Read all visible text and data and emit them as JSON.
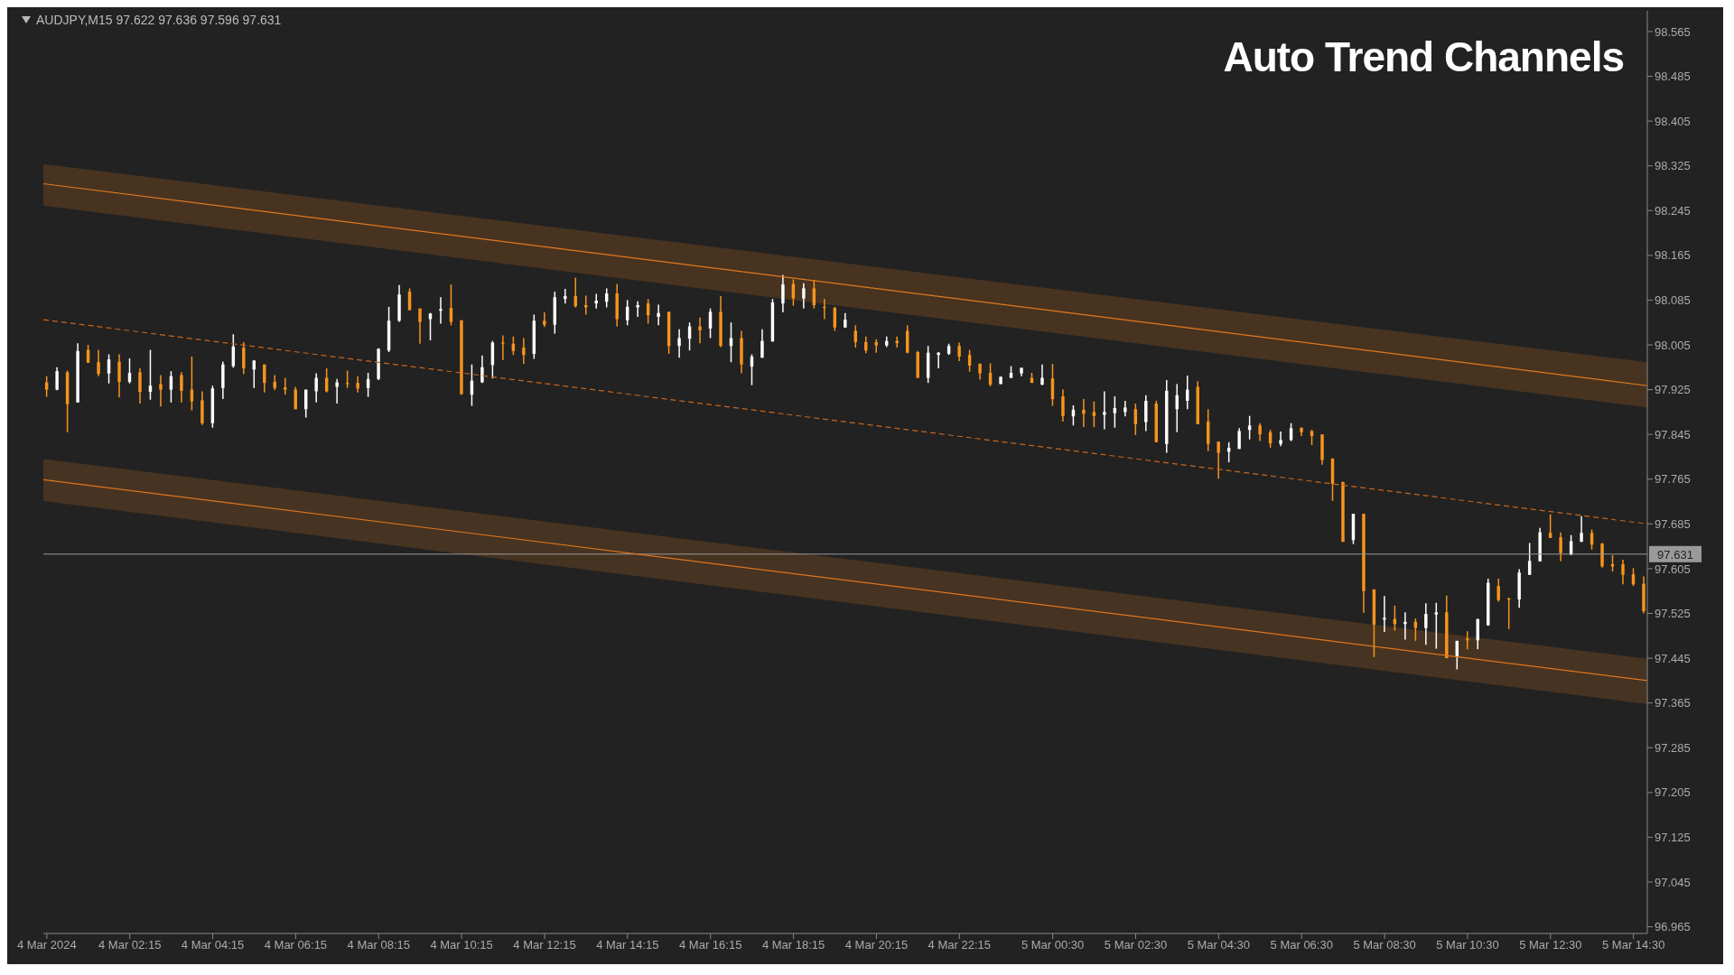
{
  "chart_data": {
    "type": "candlestick",
    "title": "Auto Trend Channels",
    "subtitle": "AUDJPY,M15  97.622 97.636 97.596 97.631",
    "x": [
      "2024-03-04T00:15",
      "2024-03-04T00:30",
      "2024-03-04T00:45",
      "2024-03-04T01:00",
      "2024-03-04T01:15",
      "2024-03-04T01:30",
      "2024-03-04T01:45",
      "2024-03-04T02:00",
      "2024-03-04T02:15",
      "2024-03-04T02:30",
      "2024-03-04T02:45",
      "2024-03-04T03:00",
      "2024-03-04T03:15",
      "2024-03-04T03:30",
      "2024-03-04T03:45",
      "2024-03-04T04:00",
      "2024-03-04T04:15",
      "2024-03-04T04:30",
      "2024-03-04T04:45",
      "2024-03-04T05:00",
      "2024-03-04T05:15",
      "2024-03-04T05:30",
      "2024-03-04T05:45",
      "2024-03-04T06:00",
      "2024-03-04T06:15",
      "2024-03-04T06:30",
      "2024-03-04T06:45",
      "2024-03-04T07:00",
      "2024-03-04T07:15",
      "2024-03-04T07:30",
      "2024-03-04T07:45",
      "2024-03-04T08:00",
      "2024-03-04T08:15",
      "2024-03-04T08:30",
      "2024-03-04T08:45",
      "2024-03-04T09:00",
      "2024-03-04T09:15",
      "2024-03-04T09:30",
      "2024-03-04T09:45",
      "2024-03-04T10:00",
      "2024-03-04T10:15",
      "2024-03-04T10:30",
      "2024-03-04T10:45",
      "2024-03-04T11:00",
      "2024-03-04T11:15",
      "2024-03-04T11:30",
      "2024-03-04T11:45",
      "2024-03-04T12:00",
      "2024-03-04T12:15",
      "2024-03-04T12:30",
      "2024-03-04T12:45",
      "2024-03-04T13:00",
      "2024-03-04T13:15",
      "2024-03-04T13:30",
      "2024-03-04T13:45",
      "2024-03-04T14:00",
      "2024-03-04T14:15",
      "2024-03-04T14:30",
      "2024-03-04T14:45",
      "2024-03-04T15:00",
      "2024-03-04T15:15",
      "2024-03-04T15:30",
      "2024-03-04T15:45",
      "2024-03-04T16:00",
      "2024-03-04T16:15",
      "2024-03-04T16:30",
      "2024-03-04T16:45",
      "2024-03-04T17:00",
      "2024-03-04T17:15",
      "2024-03-04T17:30",
      "2024-03-04T17:45",
      "2024-03-04T18:00",
      "2024-03-04T18:15",
      "2024-03-04T18:30",
      "2024-03-04T18:45",
      "2024-03-04T19:00",
      "2024-03-04T19:15",
      "2024-03-04T19:30",
      "2024-03-04T19:45",
      "2024-03-04T20:00",
      "2024-03-04T20:15",
      "2024-03-04T20:30",
      "2024-03-04T20:45",
      "2024-03-04T21:00",
      "2024-03-04T21:15",
      "2024-03-04T21:30",
      "2024-03-04T21:45",
      "2024-03-04T22:00",
      "2024-03-04T22:15",
      "2024-03-04T22:30",
      "2024-03-04T22:45",
      "2024-03-04T23:00",
      "2024-03-04T23:15",
      "2024-03-04T23:30",
      "2024-03-04T23:45",
      "2024-03-05T00:00",
      "2024-03-05T00:15",
      "2024-03-05T00:30",
      "2024-03-05T00:45",
      "2024-03-05T01:00",
      "2024-03-05T01:15",
      "2024-03-05T01:30",
      "2024-03-05T01:45",
      "2024-03-05T02:00",
      "2024-03-05T02:15",
      "2024-03-05T02:30",
      "2024-03-05T02:45",
      "2024-03-05T03:00",
      "2024-03-05T03:15",
      "2024-03-05T03:30",
      "2024-03-05T03:45",
      "2024-03-05T04:00",
      "2024-03-05T04:15",
      "2024-03-05T04:30",
      "2024-03-05T04:45",
      "2024-03-05T05:00",
      "2024-03-05T05:15",
      "2024-03-05T05:30",
      "2024-03-05T05:45",
      "2024-03-05T06:00",
      "2024-03-05T06:15",
      "2024-03-05T06:30",
      "2024-03-05T06:45",
      "2024-03-05T07:00",
      "2024-03-05T07:15",
      "2024-03-05T07:30",
      "2024-03-05T07:45",
      "2024-03-05T08:00",
      "2024-03-05T08:15",
      "2024-03-05T08:30",
      "2024-03-05T08:45",
      "2024-03-05T09:00",
      "2024-03-05T09:15",
      "2024-03-05T09:30",
      "2024-03-05T09:45",
      "2024-03-05T10:00",
      "2024-03-05T10:15",
      "2024-03-05T10:30",
      "2024-03-05T10:45",
      "2024-03-05T11:00",
      "2024-03-05T11:15",
      "2024-03-05T11:30",
      "2024-03-05T11:45",
      "2024-03-05T12:00",
      "2024-03-05T12:15",
      "2024-03-05T12:30",
      "2024-03-05T12:45",
      "2024-03-05T13:00",
      "2024-03-05T13:15",
      "2024-03-05T13:30",
      "2024-03-05T13:45",
      "2024-03-05T14:00",
      "2024-03-05T14:15",
      "2024-03-05T14:30",
      "2024-03-05T14:45"
    ],
    "ohlc": [
      [
        97.938,
        97.949,
        97.912,
        97.925
      ],
      [
        97.925,
        97.965,
        97.924,
        97.958
      ],
      [
        97.956,
        97.959,
        97.849,
        97.899
      ],
      [
        97.902,
        98.008,
        97.902,
        97.994
      ],
      [
        97.996,
        98.005,
        97.973,
        97.973
      ],
      [
        97.974,
        97.996,
        97.949,
        97.953
      ],
      [
        97.954,
        97.988,
        97.936,
        97.979
      ],
      [
        97.975,
        97.988,
        97.911,
        97.939
      ],
      [
        97.939,
        97.981,
        97.936,
        97.955
      ],
      [
        97.956,
        97.963,
        97.9,
        97.921
      ],
      [
        97.921,
        97.996,
        97.907,
        97.932
      ],
      [
        97.935,
        97.951,
        97.895,
        97.925
      ],
      [
        97.925,
        97.958,
        97.902,
        97.949
      ],
      [
        97.951,
        97.956,
        97.902,
        97.923
      ],
      [
        97.925,
        97.984,
        97.888,
        97.904
      ],
      [
        97.906,
        97.922,
        97.862,
        97.865
      ],
      [
        97.865,
        97.932,
        97.857,
        97.927
      ],
      [
        97.928,
        97.975,
        97.908,
        97.97
      ],
      [
        97.967,
        98.024,
        97.964,
        98.002
      ],
      [
        98.0,
        98.01,
        97.953,
        97.963
      ],
      [
        97.961,
        97.977,
        97.928,
        97.977
      ],
      [
        97.97,
        97.97,
        97.92,
        97.937
      ],
      [
        97.939,
        97.951,
        97.924,
        97.928
      ],
      [
        97.929,
        97.946,
        97.916,
        97.925
      ],
      [
        97.925,
        97.93,
        97.89,
        97.89
      ],
      [
        97.89,
        97.925,
        97.875,
        97.925
      ],
      [
        97.922,
        97.954,
        97.902,
        97.946
      ],
      [
        97.946,
        97.963,
        97.92,
        97.922
      ],
      [
        97.93,
        97.944,
        97.9,
        97.938
      ],
      [
        97.937,
        97.959,
        97.928,
        97.935
      ],
      [
        97.937,
        97.949,
        97.92,
        97.927
      ],
      [
        97.928,
        97.955,
        97.912,
        97.944
      ],
      [
        97.944,
        97.999,
        97.942,
        97.998
      ],
      [
        97.995,
        98.073,
        97.992,
        98.048
      ],
      [
        98.048,
        98.112,
        98.046,
        98.095
      ],
      [
        98.1,
        98.106,
        98.067,
        98.067
      ],
      [
        98.07,
        98.07,
        98.007,
        98.046
      ],
      [
        98.051,
        98.062,
        98.013,
        98.061
      ],
      [
        98.066,
        98.09,
        98.043,
        98.069
      ],
      [
        98.071,
        98.113,
        98.04,
        98.046
      ],
      [
        98.049,
        98.049,
        97.916,
        97.917
      ],
      [
        97.916,
        97.97,
        97.896,
        97.941
      ],
      [
        97.938,
        97.986,
        97.937,
        97.965
      ],
      [
        97.969,
        98.012,
        97.945,
        98.009
      ],
      [
        98.009,
        98.022,
        97.978,
        98.007
      ],
      [
        98.007,
        98.02,
        97.987,
        97.994
      ],
      [
        98.0,
        98.017,
        97.971,
        97.987
      ],
      [
        97.989,
        98.059,
        97.98,
        98.048
      ],
      [
        98.048,
        98.063,
        98.037,
        98.041
      ],
      [
        98.041,
        98.1,
        98.025,
        98.09
      ],
      [
        98.087,
        98.105,
        98.079,
        98.092
      ],
      [
        98.092,
        98.125,
        98.072,
        98.074
      ],
      [
        98.076,
        98.093,
        98.059,
        98.072
      ],
      [
        98.079,
        98.096,
        98.07,
        98.084
      ],
      [
        98.082,
        98.106,
        98.072,
        98.097
      ],
      [
        98.097,
        98.114,
        98.038,
        98.051
      ],
      [
        98.049,
        98.085,
        98.04,
        98.073
      ],
      [
        98.072,
        98.083,
        98.055,
        98.076
      ],
      [
        98.079,
        98.087,
        98.043,
        98.058
      ],
      [
        98.055,
        98.077,
        98.04,
        98.062
      ],
      [
        98.064,
        98.064,
        97.989,
        98.003
      ],
      [
        98.003,
        98.033,
        97.982,
        98.017
      ],
      [
        98.016,
        98.045,
        97.995,
        98.038
      ],
      [
        98.038,
        98.054,
        98.008,
        98.031
      ],
      [
        98.034,
        98.07,
        98.017,
        98.064
      ],
      [
        98.064,
        98.092,
        98.001,
        98.003
      ],
      [
        98.003,
        98.045,
        97.974,
        98.017
      ],
      [
        98.017,
        98.03,
        97.954,
        97.97
      ],
      [
        97.966,
        97.988,
        97.933,
        97.984
      ],
      [
        97.982,
        98.033,
        97.982,
        98.012
      ],
      [
        98.011,
        98.087,
        98.011,
        98.081
      ],
      [
        98.079,
        98.13,
        98.063,
        98.113
      ],
      [
        98.114,
        98.122,
        98.075,
        98.088
      ],
      [
        98.088,
        98.115,
        98.07,
        98.106
      ],
      [
        98.106,
        98.121,
        98.07,
        98.076
      ],
      [
        98.073,
        98.087,
        98.051,
        98.071
      ],
      [
        98.071,
        98.073,
        98.03,
        98.036
      ],
      [
        98.036,
        98.062,
        98.036,
        98.05
      ],
      [
        98.03,
        98.04,
        98.0,
        98.01
      ],
      [
        98.01,
        98.02,
        97.99,
        97.995
      ],
      [
        98.01,
        98.015,
        97.991,
        98.004
      ],
      [
        98.004,
        98.02,
        98.001,
        98.012
      ],
      [
        98.012,
        98.02,
        98.0,
        98.008
      ],
      [
        98.03,
        98.04,
        97.99,
        97.991
      ],
      [
        97.992,
        97.994,
        97.946,
        97.946
      ],
      [
        97.946,
        98.003,
        97.937,
        97.991
      ],
      [
        97.987,
        97.992,
        97.963,
        97.991
      ],
      [
        97.989,
        98.007,
        97.987,
        98.003
      ],
      [
        98.003,
        98.009,
        97.976,
        97.984
      ],
      [
        97.987,
        97.996,
        97.957,
        97.968
      ],
      [
        97.971,
        97.972,
        97.943,
        97.954
      ],
      [
        97.955,
        97.972,
        97.931,
        97.934
      ],
      [
        97.935,
        97.948,
        97.935,
        97.948
      ],
      [
        97.946,
        97.967,
        97.946,
        97.955
      ],
      [
        97.954,
        97.964,
        97.949,
        97.964
      ],
      [
        97.946,
        97.955,
        97.937,
        97.937
      ],
      [
        97.934,
        97.97,
        97.933,
        97.946
      ],
      [
        97.945,
        97.971,
        97.896,
        97.908
      ],
      [
        97.913,
        97.925,
        97.868,
        97.878
      ],
      [
        97.877,
        97.897,
        97.861,
        97.889
      ],
      [
        97.889,
        97.908,
        97.858,
        97.882
      ],
      [
        97.885,
        97.904,
        97.858,
        97.878
      ],
      [
        97.88,
        97.922,
        97.854,
        97.885
      ],
      [
        97.883,
        97.913,
        97.857,
        97.892
      ],
      [
        97.885,
        97.905,
        97.877,
        97.893
      ],
      [
        97.89,
        97.9,
        97.844,
        97.863
      ],
      [
        97.867,
        97.915,
        97.851,
        97.905
      ],
      [
        97.9,
        97.905,
        97.831,
        97.831
      ],
      [
        97.828,
        97.942,
        97.812,
        97.923
      ],
      [
        97.89,
        97.935,
        97.849,
        97.915
      ],
      [
        97.905,
        97.95,
        97.89,
        97.925
      ],
      [
        97.93,
        97.94,
        97.863,
        97.863
      ],
      [
        97.868,
        97.89,
        97.815,
        97.828
      ],
      [
        97.832,
        97.832,
        97.766,
        97.812
      ],
      [
        97.814,
        97.831,
        97.795,
        97.821
      ],
      [
        97.819,
        97.856,
        97.819,
        97.851
      ],
      [
        97.853,
        97.878,
        97.836,
        97.861
      ],
      [
        97.861,
        97.865,
        97.833,
        97.845
      ],
      [
        97.849,
        97.853,
        97.821,
        97.829
      ],
      [
        97.828,
        97.85,
        97.824,
        97.835
      ],
      [
        97.835,
        97.865,
        97.833,
        97.856
      ],
      [
        97.857,
        97.857,
        97.842,
        97.849
      ],
      [
        97.851,
        97.853,
        97.826,
        97.842
      ],
      [
        97.845,
        97.845,
        97.791,
        97.799
      ],
      [
        97.802,
        97.802,
        97.726,
        97.757
      ],
      [
        97.76,
        97.76,
        97.653,
        97.653
      ],
      [
        97.656,
        97.703,
        97.649,
        97.703
      ],
      [
        97.703,
        97.703,
        97.526,
        97.565
      ],
      [
        97.568,
        97.568,
        97.447,
        97.505
      ],
      [
        97.514,
        97.556,
        97.492,
        97.517
      ],
      [
        97.515,
        97.539,
        97.494,
        97.506
      ],
      [
        97.506,
        97.527,
        97.478,
        97.51
      ],
      [
        97.51,
        97.516,
        97.476,
        97.499
      ],
      [
        97.499,
        97.543,
        97.469,
        97.524
      ],
      [
        97.523,
        97.544,
        97.462,
        97.527
      ],
      [
        97.527,
        97.557,
        97.445,
        97.445
      ],
      [
        97.447,
        97.476,
        97.425,
        97.476
      ],
      [
        97.48,
        97.493,
        97.461,
        97.477
      ],
      [
        97.477,
        97.515,
        97.461,
        97.515
      ],
      [
        97.504,
        97.587,
        97.503,
        97.58
      ],
      [
        97.574,
        97.587,
        97.546,
        97.549
      ],
      [
        97.552,
        97.553,
        97.497,
        97.55
      ],
      [
        97.55,
        97.604,
        97.535,
        97.598
      ],
      [
        97.594,
        97.651,
        97.594,
        97.619
      ],
      [
        97.618,
        97.678,
        97.618,
        97.67
      ],
      [
        97.669,
        97.702,
        97.66,
        97.66
      ],
      [
        97.661,
        97.67,
        97.618,
        97.633
      ],
      [
        97.63,
        97.665,
        97.629,
        97.654
      ],
      [
        97.653,
        97.699,
        97.653,
        97.669
      ],
      [
        97.669,
        97.675,
        97.639,
        97.648
      ],
      [
        97.65,
        97.651,
        97.607,
        97.609
      ],
      [
        97.613,
        97.629,
        97.6,
        97.609
      ],
      [
        97.613,
        97.621,
        97.577,
        97.594
      ],
      [
        97.595,
        97.606,
        97.574,
        97.577
      ],
      [
        97.578,
        97.591,
        97.525,
        97.529
      ]
    ],
    "colors": [
      "#f7941d",
      "#ffffff",
      "#f7941d",
      "#ffffff",
      "#f7941d",
      "#f7941d",
      "#ffffff",
      "#f7941d",
      "#ffffff",
      "#f7941d",
      "#ffffff",
      "#f7941d",
      "#ffffff",
      "#f7941d",
      "#f7941d",
      "#f7941d",
      "#ffffff",
      "#ffffff",
      "#ffffff",
      "#f7941d",
      "#ffffff",
      "#f7941d",
      "#f7941d",
      "#f7941d",
      "#f7941d",
      "#ffffff",
      "#ffffff",
      "#f7941d",
      "#ffffff",
      "#f7941d",
      "#f7941d",
      "#ffffff",
      "#ffffff",
      "#ffffff",
      "#ffffff",
      "#f7941d",
      "#f7941d",
      "#ffffff",
      "#ffffff",
      "#f7941d",
      "#f7941d",
      "#ffffff",
      "#ffffff",
      "#ffffff",
      "#f7941d",
      "#f7941d",
      "#f7941d",
      "#ffffff",
      "#f7941d",
      "#ffffff",
      "#ffffff",
      "#f7941d",
      "#f7941d",
      "#ffffff",
      "#ffffff",
      "#f7941d",
      "#ffffff",
      "#ffffff",
      "#f7941d",
      "#ffffff",
      "#f7941d",
      "#ffffff",
      "#ffffff",
      "#f7941d",
      "#ffffff",
      "#f7941d",
      "#ffffff",
      "#f7941d",
      "#ffffff",
      "#ffffff",
      "#ffffff",
      "#ffffff",
      "#f7941d",
      "#ffffff",
      "#f7941d",
      "#f7941d",
      "#f7941d",
      "#ffffff",
      "#f7941d",
      "#f7941d",
      "#f7941d",
      "#ffffff",
      "#f7941d",
      "#f7941d",
      "#f7941d",
      "#ffffff",
      "#ffffff",
      "#ffffff",
      "#f7941d",
      "#f7941d",
      "#f7941d",
      "#f7941d",
      "#ffffff",
      "#ffffff",
      "#ffffff",
      "#f7941d",
      "#ffffff",
      "#f7941d",
      "#f7941d",
      "#ffffff",
      "#f7941d",
      "#f7941d",
      "#ffffff",
      "#ffffff",
      "#ffffff",
      "#f7941d",
      "#ffffff",
      "#f7941d",
      "#ffffff",
      "#ffffff",
      "#ffffff",
      "#f7941d",
      "#f7941d",
      "#f7941d",
      "#ffffff",
      "#ffffff",
      "#ffffff",
      "#f7941d",
      "#f7941d",
      "#ffffff",
      "#ffffff",
      "#f7941d",
      "#f7941d",
      "#f7941d",
      "#f7941d",
      "#f7941d",
      "#ffffff",
      "#f7941d",
      "#f7941d",
      "#ffffff",
      "#f7941d",
      "#ffffff",
      "#f7941d",
      "#ffffff",
      "#ffffff",
      "#f7941d",
      "#ffffff",
      "#f7941d",
      "#ffffff",
      "#ffffff",
      "#f7941d",
      "#f7941d",
      "#ffffff",
      "#ffffff",
      "#ffffff",
      "#f7941d",
      "#f7941d",
      "#ffffff",
      "#ffffff",
      "#f7941d",
      "#f7941d",
      "#f7941d",
      "#f7941d",
      "#f7941d",
      "#f7941d"
    ],
    "series": [
      {
        "type": "line",
        "color": "#e07a1f",
        "x": [
          "2024-03-04T00:10",
          "2024-03-05T14:50"
        ],
        "values": [
          98.293,
          97.932
        ],
        "lower": [
          98.254,
          97.893
        ],
        "upper": [
          98.328,
          97.974
        ]
      },
      {
        "type": "line",
        "color": "#dc7620",
        "x": [
          "2024-03-04T00:10",
          "2024-03-05T14:50"
        ],
        "values": [
          97.764,
          97.405
        ],
        "lower": [
          97.726,
          97.363
        ],
        "upper": [
          97.801,
          97.444
        ]
      },
      {
        "type": "line",
        "color": "#c8651c",
        "line_style": "dashed",
        "x": [
          "2024-03-04T00:10",
          "2024-03-05T14:50"
        ],
        "values": [
          98.05,
          97.685
        ]
      }
    ],
    "xlim": [
      "2024-03-04T00:10",
      "2024-03-05T14:50"
    ],
    "xticks": [
      {
        "value": "2024-03-04T00:15",
        "label": "4 Mar 2024"
      },
      {
        "value": "2024-03-04T02:15",
        "label": "4 Mar 02:15"
      },
      {
        "value": "2024-03-04T04:15",
        "label": "4 Mar 04:15"
      },
      {
        "value": "2024-03-04T06:15",
        "label": "4 Mar 06:15"
      },
      {
        "value": "2024-03-04T08:15",
        "label": "4 Mar 08:15"
      },
      {
        "value": "2024-03-04T10:15",
        "label": "4 Mar 10:15"
      },
      {
        "value": "2024-03-04T12:15",
        "label": "4 Mar 12:15"
      },
      {
        "value": "2024-03-04T14:15",
        "label": "4 Mar 14:15"
      },
      {
        "value": "2024-03-04T16:15",
        "label": "4 Mar 16:15"
      },
      {
        "value": "2024-03-04T18:15",
        "label": "4 Mar 18:15"
      },
      {
        "value": "2024-03-04T20:15",
        "label": "4 Mar 20:15"
      },
      {
        "value": "2024-03-04T22:15",
        "label": "4 Mar 22:15"
      },
      {
        "value": "2024-03-05T00:30",
        "label": "5 Mar 00:30"
      },
      {
        "value": "2024-03-05T02:30",
        "label": "5 Mar 02:30"
      },
      {
        "value": "2024-03-05T04:30",
        "label": "5 Mar 04:30"
      },
      {
        "value": "2024-03-05T06:30",
        "label": "5 Mar 06:30"
      },
      {
        "value": "2024-03-05T08:30",
        "label": "5 Mar 08:30"
      },
      {
        "value": "2024-03-05T10:30",
        "label": "5 Mar 10:30"
      },
      {
        "value": "2024-03-05T12:30",
        "label": "5 Mar 12:30"
      },
      {
        "value": "2024-03-05T14:30",
        "label": "5 Mar 14:30"
      }
    ],
    "ylim": [
      96.953,
      98.602
    ],
    "yticks": [
      98.565,
      98.485,
      98.405,
      98.325,
      98.245,
      98.165,
      98.085,
      98.005,
      97.925,
      97.845,
      97.765,
      97.685,
      97.605,
      97.525,
      97.445,
      97.365,
      97.285,
      97.205,
      97.125,
      97.045,
      96.965
    ],
    "ref_lines": [
      {
        "axis": "y",
        "value": 97.631,
        "label": "97.631",
        "color": "#9a9a9a"
      }
    ],
    "grid": false,
    "legend": false
  }
}
